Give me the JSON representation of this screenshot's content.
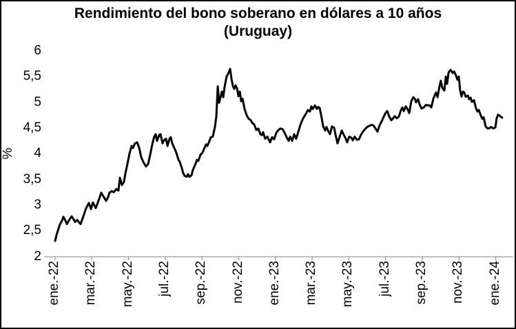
{
  "colors": {
    "line": "#000000",
    "axis": "#999999",
    "text": "#000000",
    "background": "#ffffff",
    "border": "#000000"
  },
  "chart_data": {
    "type": "line",
    "title": "Rendimiento del bono soberano en dólares a 10 años",
    "subtitle": "(Uruguay)",
    "ylabel": "%",
    "xlabel": "",
    "grid": false,
    "legend": false,
    "ylim": [
      2,
      6
    ],
    "xlim_months": [
      0,
      24.5
    ],
    "y_tick_labels": [
      "6",
      "5,5",
      "5",
      "4,5",
      "4",
      "3,5",
      "3",
      "2,5",
      "2"
    ],
    "y_tick_values": [
      6,
      5.5,
      5,
      4.5,
      4,
      3.5,
      3,
      2.5,
      2
    ],
    "x_tick_labels": [
      "ene.-22",
      "mar.-22",
      "may.-22",
      "jul.-22",
      "sep.-22",
      "nov.-22",
      "ene.-23",
      "mar.-23",
      "may.-23",
      "jul.-23",
      "sep.-23",
      "nov.-23",
      "ene.-24"
    ],
    "x_tick_positions_months": [
      0,
      2,
      4,
      6,
      8,
      10,
      12,
      14,
      16,
      18,
      20,
      22,
      24
    ],
    "x_unit": "months since ene.-22",
    "series": [
      {
        "name": "Rendimiento del bono soberano en dólares a 10 años (Uruguay)",
        "color": "#000000",
        "points": [
          [
            0,
            2.3
          ],
          [
            0.08,
            2.42
          ],
          [
            0.15,
            2.5
          ],
          [
            0.26,
            2.62
          ],
          [
            0.38,
            2.7
          ],
          [
            0.45,
            2.77
          ],
          [
            0.56,
            2.7
          ],
          [
            0.64,
            2.63
          ],
          [
            0.75,
            2.7
          ],
          [
            0.9,
            2.78
          ],
          [
            1.01,
            2.72
          ],
          [
            1.09,
            2.67
          ],
          [
            1.2,
            2.71
          ],
          [
            1.31,
            2.66
          ],
          [
            1.39,
            2.63
          ],
          [
            1.54,
            2.78
          ],
          [
            1.69,
            2.94
          ],
          [
            1.84,
            3.04
          ],
          [
            1.95,
            2.92
          ],
          [
            2.06,
            3.05
          ],
          [
            2.21,
            2.94
          ],
          [
            2.33,
            3.05
          ],
          [
            2.4,
            3.12
          ],
          [
            2.51,
            3.24
          ],
          [
            2.66,
            3.15
          ],
          [
            2.78,
            3.08
          ],
          [
            2.89,
            3.16
          ],
          [
            2.96,
            3.24
          ],
          [
            3.08,
            3.27
          ],
          [
            3.19,
            3.25
          ],
          [
            3.34,
            3.31
          ],
          [
            3.45,
            3.28
          ],
          [
            3.53,
            3.53
          ],
          [
            3.64,
            3.39
          ],
          [
            3.75,
            3.45
          ],
          [
            3.83,
            3.62
          ],
          [
            3.94,
            3.8
          ],
          [
            4.05,
            4.0
          ],
          [
            4.17,
            4.15
          ],
          [
            4.24,
            4.11
          ],
          [
            4.35,
            4.2
          ],
          [
            4.47,
            4.22
          ],
          [
            4.58,
            4.11
          ],
          [
            4.69,
            3.93
          ],
          [
            4.8,
            3.84
          ],
          [
            4.95,
            3.75
          ],
          [
            5.07,
            3.8
          ],
          [
            5.18,
            3.98
          ],
          [
            5.29,
            4.18
          ],
          [
            5.4,
            4.33
          ],
          [
            5.48,
            4.38
          ],
          [
            5.55,
            4.25
          ],
          [
            5.67,
            4.36
          ],
          [
            5.74,
            4.38
          ],
          [
            5.85,
            4.2
          ],
          [
            5.93,
            4.26
          ],
          [
            6.04,
            4.29
          ],
          [
            6.12,
            4.15
          ],
          [
            6.23,
            4.29
          ],
          [
            6.3,
            4.32
          ],
          [
            6.38,
            4.2
          ],
          [
            6.49,
            4.11
          ],
          [
            6.6,
            4.02
          ],
          [
            6.72,
            3.88
          ],
          [
            6.79,
            3.84
          ],
          [
            6.9,
            3.72
          ],
          [
            6.98,
            3.62
          ],
          [
            7.05,
            3.57
          ],
          [
            7.17,
            3.55
          ],
          [
            7.24,
            3.6
          ],
          [
            7.32,
            3.55
          ],
          [
            7.43,
            3.58
          ],
          [
            7.5,
            3.68
          ],
          [
            7.62,
            3.78
          ],
          [
            7.73,
            3.88
          ],
          [
            7.8,
            3.86
          ],
          [
            7.92,
            3.98
          ],
          [
            8.03,
            4.02
          ],
          [
            8.11,
            4.09
          ],
          [
            8.22,
            4.18
          ],
          [
            8.29,
            4.15
          ],
          [
            8.41,
            4.25
          ],
          [
            8.48,
            4.32
          ],
          [
            8.59,
            4.33
          ],
          [
            8.71,
            4.53
          ],
          [
            8.78,
            4.72
          ],
          [
            8.86,
            5.31
          ],
          [
            8.93,
            4.99
          ],
          [
            9.01,
            5.1
          ],
          [
            9.08,
            5.21
          ],
          [
            9.16,
            5.1
          ],
          [
            9.23,
            5.3
          ],
          [
            9.34,
            5.5
          ],
          [
            9.46,
            5.58
          ],
          [
            9.53,
            5.65
          ],
          [
            9.61,
            5.45
          ],
          [
            9.68,
            5.32
          ],
          [
            9.76,
            5.26
          ],
          [
            9.83,
            5.33
          ],
          [
            9.91,
            5.27
          ],
          [
            9.98,
            5.12
          ],
          [
            10.06,
            5.21
          ],
          [
            10.13,
            5.02
          ],
          [
            10.21,
            5.07
          ],
          [
            10.32,
            4.87
          ],
          [
            10.43,
            4.75
          ],
          [
            10.54,
            4.68
          ],
          [
            10.66,
            4.65
          ],
          [
            10.73,
            4.6
          ],
          [
            10.84,
            4.57
          ],
          [
            10.96,
            4.46
          ],
          [
            11.07,
            4.49
          ],
          [
            11.18,
            4.38
          ],
          [
            11.26,
            4.36
          ],
          [
            11.33,
            4.42
          ],
          [
            11.44,
            4.29
          ],
          [
            11.56,
            4.33
          ],
          [
            11.63,
            4.28
          ],
          [
            11.71,
            4.22
          ],
          [
            11.82,
            4.32
          ],
          [
            11.93,
            4.28
          ],
          [
            12.04,
            4.4
          ],
          [
            12.16,
            4.46
          ],
          [
            12.27,
            4.49
          ],
          [
            12.38,
            4.48
          ],
          [
            12.5,
            4.41
          ],
          [
            12.61,
            4.32
          ],
          [
            12.72,
            4.25
          ],
          [
            12.8,
            4.33
          ],
          [
            12.91,
            4.25
          ],
          [
            13.02,
            4.38
          ],
          [
            13.13,
            4.29
          ],
          [
            13.25,
            4.43
          ],
          [
            13.36,
            4.56
          ],
          [
            13.47,
            4.66
          ],
          [
            13.58,
            4.73
          ],
          [
            13.7,
            4.8
          ],
          [
            13.77,
            4.85
          ],
          [
            13.88,
            4.82
          ],
          [
            13.96,
            4.92
          ],
          [
            14.03,
            4.87
          ],
          [
            14.15,
            4.94
          ],
          [
            14.26,
            4.87
          ],
          [
            14.33,
            4.91
          ],
          [
            14.41,
            4.89
          ],
          [
            14.52,
            4.69
          ],
          [
            14.6,
            4.53
          ],
          [
            14.71,
            4.45
          ],
          [
            14.78,
            4.52
          ],
          [
            14.9,
            4.42
          ],
          [
            14.97,
            4.38
          ],
          [
            15.08,
            4.53
          ],
          [
            15.2,
            4.5
          ],
          [
            15.27,
            4.38
          ],
          [
            15.38,
            4.2
          ],
          [
            15.5,
            4.33
          ],
          [
            15.61,
            4.45
          ],
          [
            15.72,
            4.37
          ],
          [
            15.83,
            4.29
          ],
          [
            15.91,
            4.22
          ],
          [
            16.02,
            4.33
          ],
          [
            16.14,
            4.31
          ],
          [
            16.21,
            4.26
          ],
          [
            16.32,
            4.33
          ],
          [
            16.44,
            4.27
          ],
          [
            16.55,
            4.28
          ],
          [
            16.66,
            4.37
          ],
          [
            16.77,
            4.43
          ],
          [
            16.89,
            4.48
          ],
          [
            17.0,
            4.52
          ],
          [
            17.11,
            4.54
          ],
          [
            17.22,
            4.56
          ],
          [
            17.34,
            4.55
          ],
          [
            17.45,
            4.49
          ],
          [
            17.56,
            4.43
          ],
          [
            17.67,
            4.55
          ],
          [
            17.79,
            4.63
          ],
          [
            17.9,
            4.72
          ],
          [
            18.01,
            4.8
          ],
          [
            18.09,
            4.83
          ],
          [
            18.2,
            4.72
          ],
          [
            18.31,
            4.65
          ],
          [
            18.39,
            4.68
          ],
          [
            18.5,
            4.73
          ],
          [
            18.61,
            4.69
          ],
          [
            18.72,
            4.72
          ],
          [
            18.84,
            4.85
          ],
          [
            18.91,
            4.9
          ],
          [
            18.99,
            4.83
          ],
          [
            19.1,
            4.92
          ],
          [
            19.21,
            4.86
          ],
          [
            19.29,
            4.79
          ],
          [
            19.4,
            5.02
          ],
          [
            19.51,
            5.1
          ],
          [
            19.59,
            5.07
          ],
          [
            19.66,
            5.0
          ],
          [
            19.77,
            5.06
          ],
          [
            19.85,
            4.96
          ],
          [
            19.96,
            4.88
          ],
          [
            20.08,
            4.9
          ],
          [
            20.19,
            4.95
          ],
          [
            20.3,
            4.94
          ],
          [
            20.41,
            4.94
          ],
          [
            20.49,
            4.9
          ],
          [
            20.6,
            5.07
          ],
          [
            20.68,
            5.14
          ],
          [
            20.75,
            5.19
          ],
          [
            20.83,
            5.1
          ],
          [
            20.94,
            5.32
          ],
          [
            21.01,
            5.42
          ],
          [
            21.09,
            5.28
          ],
          [
            21.2,
            5.23
          ],
          [
            21.28,
            5.5
          ],
          [
            21.35,
            5.36
          ],
          [
            21.43,
            5.58
          ],
          [
            21.54,
            5.63
          ],
          [
            21.65,
            5.57
          ],
          [
            21.73,
            5.6
          ],
          [
            21.84,
            5.52
          ],
          [
            21.91,
            5.44
          ],
          [
            21.99,
            5.5
          ],
          [
            22.06,
            5.23
          ],
          [
            22.14,
            5.11
          ],
          [
            22.21,
            5.21
          ],
          [
            22.29,
            5.19
          ],
          [
            22.36,
            5.11
          ],
          [
            22.48,
            5.13
          ],
          [
            22.55,
            5.06
          ],
          [
            22.63,
            5.09
          ],
          [
            22.7,
            5.01
          ],
          [
            22.81,
            5.04
          ],
          [
            22.93,
            4.88
          ],
          [
            23.0,
            4.82
          ],
          [
            23.08,
            4.85
          ],
          [
            23.19,
            4.74
          ],
          [
            23.26,
            4.68
          ],
          [
            23.34,
            4.71
          ],
          [
            23.45,
            4.53
          ],
          [
            23.56,
            4.49
          ],
          [
            23.68,
            4.5
          ],
          [
            23.75,
            4.52
          ],
          [
            23.86,
            4.49
          ],
          [
            23.98,
            4.51
          ],
          [
            24.05,
            4.69
          ],
          [
            24.13,
            4.76
          ],
          [
            24.24,
            4.73
          ],
          [
            24.35,
            4.7
          ]
        ]
      }
    ]
  }
}
